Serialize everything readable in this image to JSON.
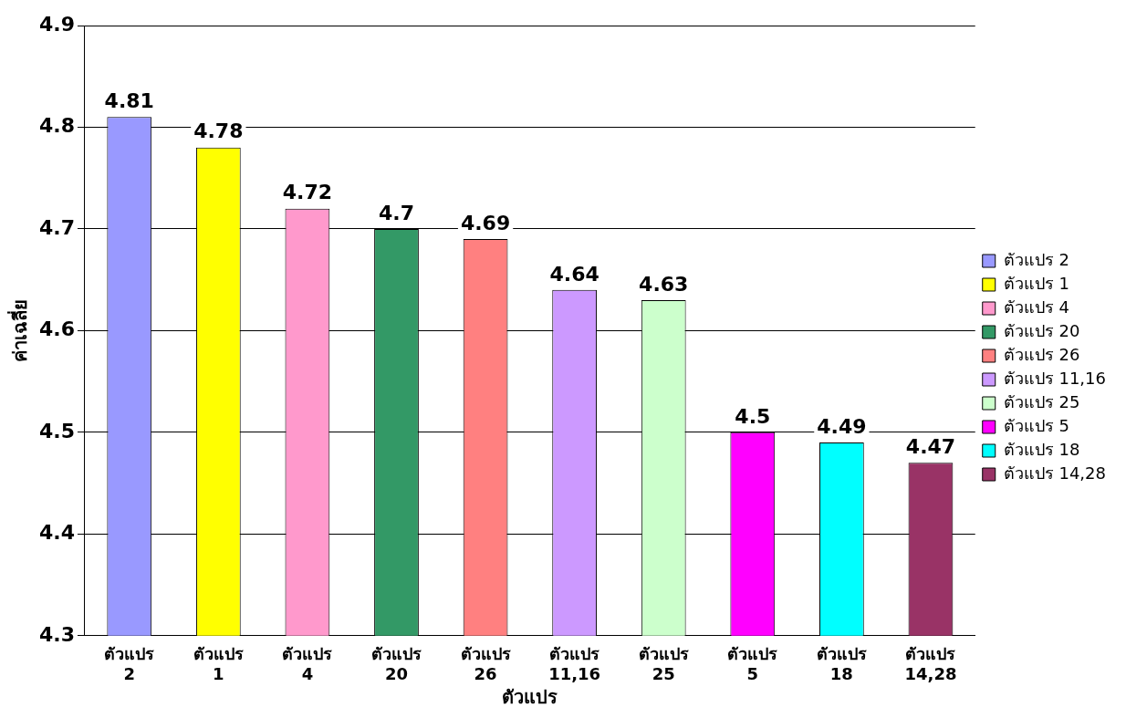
{
  "chart_data": {
    "type": "bar",
    "xlabel": "ตัวแปร",
    "ylabel": "ค่าเฉลี่ย",
    "categories": [
      "ตัวแปร 2",
      "ตัวแปร 1",
      "ตัวแปร 4",
      "ตัวแปร 20",
      "ตัวแปร 26",
      "ตัวแปร 11,16",
      "ตัวแปร 25",
      "ตัวแปร 5",
      "ตัวแปร 18",
      "ตัวแปร 14,28"
    ],
    "series": [
      {
        "name": "ตัวแปร 2",
        "color": "#9999ff",
        "values": [
          4.81,
          null,
          null,
          null,
          null,
          null,
          null,
          null,
          null,
          null
        ]
      },
      {
        "name": "ตัวแปร 1",
        "color": "#ffff00",
        "values": [
          null,
          4.78,
          null,
          null,
          null,
          null,
          null,
          null,
          null,
          null
        ]
      },
      {
        "name": "ตัวแปร 4",
        "color": "#ff99cc",
        "values": [
          null,
          null,
          4.72,
          null,
          null,
          null,
          null,
          null,
          null,
          null
        ]
      },
      {
        "name": "ตัวแปร 20",
        "color": "#339966",
        "values": [
          null,
          null,
          null,
          4.7,
          null,
          null,
          null,
          null,
          null,
          null
        ]
      },
      {
        "name": "ตัวแปร 26",
        "color": "#ff8080",
        "values": [
          null,
          null,
          null,
          null,
          4.69,
          null,
          null,
          null,
          null,
          null
        ]
      },
      {
        "name": "ตัวแปร 11,16",
        "color": "#cc99ff",
        "values": [
          null,
          null,
          null,
          null,
          null,
          4.64,
          null,
          null,
          null,
          null
        ]
      },
      {
        "name": "ตัวแปร 25",
        "color": "#ccffcc",
        "values": [
          null,
          null,
          null,
          null,
          null,
          null,
          4.63,
          null,
          null,
          null
        ]
      },
      {
        "name": "ตัวแปร 5",
        "color": "#ff00ff",
        "values": [
          null,
          null,
          null,
          null,
          null,
          null,
          null,
          4.5,
          null,
          null
        ]
      },
      {
        "name": "ตัวแปร 18",
        "color": "#00ffff",
        "values": [
          null,
          null,
          null,
          null,
          null,
          null,
          null,
          null,
          4.49,
          null
        ]
      },
      {
        "name": "ตัวแปร 14,28",
        "color": "#993366",
        "values": [
          null,
          null,
          null,
          null,
          null,
          null,
          null,
          null,
          null,
          4.47
        ]
      }
    ],
    "ylim": [
      4.3,
      4.9
    ],
    "yticks": [
      4.3,
      4.4,
      4.5,
      4.6,
      4.7,
      4.8,
      4.9
    ],
    "grid": "y",
    "legend": "right",
    "data_labels": true
  }
}
